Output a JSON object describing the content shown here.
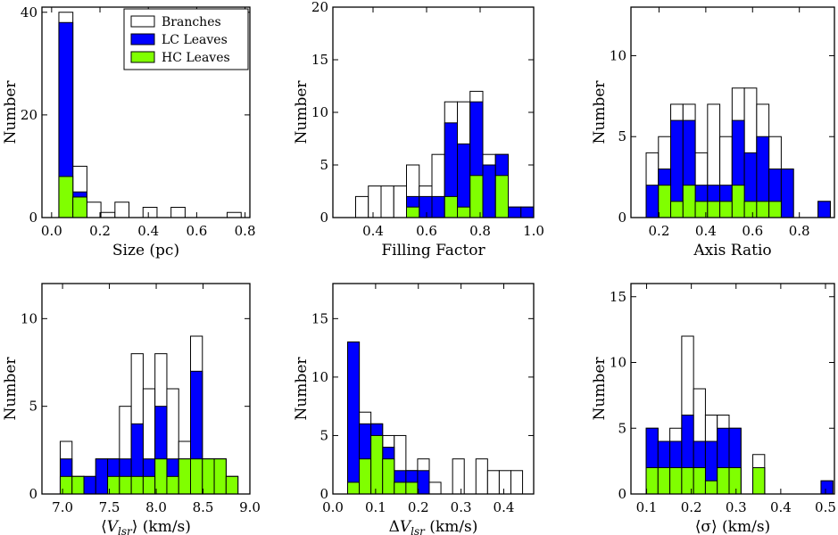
{
  "colors": {
    "branches": "#ffffff",
    "lc_leaves": "#0000ff",
    "hc_leaves": "#80ff00",
    "edge": "#000000"
  },
  "legend": [
    {
      "label": "Branches",
      "color": "#ffffff"
    },
    {
      "label": "LC Leaves",
      "color": "#0000ff"
    },
    {
      "label": "HC Leaves",
      "color": "#80ff00"
    }
  ],
  "chart_data": [
    {
      "type": "bar",
      "id": "size",
      "xlabel": "Size (pc)",
      "ylabel": "Number",
      "xlim": [
        -0.04,
        0.82
      ],
      "ylim": [
        0,
        41
      ],
      "xticks": [
        0.0,
        0.2,
        0.4,
        0.6,
        0.8
      ],
      "xtick_labels": [
        "0.0",
        "0.2",
        "0.4",
        "0.6",
        "0.8"
      ],
      "yticks": [
        0,
        20,
        40
      ],
      "ytick_labels": [
        "0",
        "20",
        "40"
      ],
      "bin_width": 0.058,
      "bin_starts": [
        0.03,
        0.088,
        0.146,
        0.204,
        0.262,
        0.378,
        0.494,
        0.726
      ],
      "branches": [
        40,
        10,
        3,
        1,
        3,
        2,
        2,
        1
      ],
      "lc_leaves": [
        38,
        5,
        0,
        0,
        0,
        0,
        0,
        0
      ],
      "hc_leaves": [
        8,
        4,
        0,
        0,
        0,
        0,
        0,
        0
      ],
      "legend": true
    },
    {
      "type": "bar",
      "id": "filling",
      "xlabel": "Filling Factor",
      "ylabel": "Number",
      "xlim": [
        0.25,
        1.0
      ],
      "ylim": [
        0,
        20
      ],
      "xticks": [
        0.4,
        0.6,
        0.8,
        1.0
      ],
      "xtick_labels": [
        "0.4",
        "0.6",
        "0.8",
        "1.0"
      ],
      "yticks": [
        0,
        5,
        10,
        15,
        20
      ],
      "ytick_labels": [
        "0",
        "5",
        "10",
        "15",
        "20"
      ],
      "bin_width": 0.0475,
      "bin_starts": [
        0.335,
        0.3825,
        0.43,
        0.4775,
        0.525,
        0.5725,
        0.62,
        0.6675,
        0.715,
        0.7625,
        0.81,
        0.8575,
        0.905,
        0.9525
      ],
      "branches": [
        2,
        3,
        3,
        3,
        5,
        3,
        6,
        11,
        11,
        12,
        6,
        6,
        1,
        1
      ],
      "lc_leaves": [
        0,
        0,
        0,
        0,
        2,
        2,
        2,
        9,
        7,
        11,
        5,
        6,
        1,
        1
      ],
      "hc_leaves": [
        0,
        0,
        0,
        0,
        1,
        0,
        0,
        2,
        1,
        4,
        0,
        4,
        0,
        0
      ],
      "legend": false
    },
    {
      "type": "bar",
      "id": "axis",
      "xlabel": "Axis Ratio",
      "ylabel": "Number",
      "xlim": [
        0.08,
        0.95
      ],
      "ylim": [
        0,
        13
      ],
      "xticks": [
        0.2,
        0.4,
        0.6,
        0.8
      ],
      "xtick_labels": [
        "0.2",
        "0.4",
        "0.6",
        "0.8"
      ],
      "yticks": [
        0,
        5,
        10
      ],
      "ytick_labels": [
        "0",
        "5",
        "10"
      ],
      "bin_width": 0.0525,
      "bin_starts": [
        0.145,
        0.1975,
        0.25,
        0.3025,
        0.355,
        0.4075,
        0.46,
        0.5125,
        0.565,
        0.6175,
        0.67,
        0.7225,
        0.8275,
        0.88
      ],
      "branches": [
        4,
        5,
        7,
        7,
        4,
        7,
        5,
        8,
        8,
        7,
        5,
        3,
        0,
        1
      ],
      "lc_leaves": [
        2,
        3,
        6,
        6,
        2,
        2,
        2,
        6,
        4,
        5,
        3,
        3,
        0,
        1
      ],
      "hc_leaves": [
        0,
        2,
        1,
        2,
        1,
        1,
        1,
        2,
        1,
        1,
        1,
        0,
        0,
        0
      ],
      "legend": false
    },
    {
      "type": "bar",
      "id": "vlsr",
      "xlabel": "⟨V_lsr⟩ (km/s)",
      "ylabel": "Number",
      "xlim": [
        6.78,
        9.0
      ],
      "ylim": [
        0,
        12
      ],
      "xticks": [
        7.0,
        7.5,
        8.0,
        8.5,
        9.0
      ],
      "xtick_labels": [
        "7.0",
        "7.5",
        "8.0",
        "8.5",
        "9.0"
      ],
      "yticks": [
        0,
        5,
        10
      ],
      "ytick_labels": [
        "0",
        "5",
        "10"
      ],
      "bin_width": 0.1265,
      "bin_starts": [
        6.975,
        7.1015,
        7.228,
        7.3545,
        7.481,
        7.6075,
        7.734,
        7.8605,
        7.987,
        8.1135,
        8.24,
        8.3665,
        8.493,
        8.6195,
        8.746
      ],
      "branches": [
        3,
        1,
        1,
        2,
        2,
        5,
        8,
        6,
        8,
        6,
        3,
        9,
        2,
        2,
        1
      ],
      "lc_leaves": [
        2,
        1,
        1,
        2,
        2,
        2,
        4,
        2,
        5,
        2,
        2,
        7,
        2,
        2,
        1
      ],
      "hc_leaves": [
        1,
        1,
        0,
        0,
        1,
        1,
        1,
        1,
        2,
        1,
        2,
        2,
        2,
        2,
        1
      ],
      "legend": false
    },
    {
      "type": "bar",
      "id": "dvlsr",
      "xlabel": "ΔV_lsr (km/s)",
      "ylabel": "Number",
      "xlim": [
        0.0,
        0.47
      ],
      "ylim": [
        0,
        18
      ],
      "xticks": [
        0.0,
        0.1,
        0.2,
        0.3,
        0.4
      ],
      "xtick_labels": [
        "0.0",
        "0.1",
        "0.2",
        "0.3",
        "0.4"
      ],
      "yticks": [
        0,
        5,
        10,
        15
      ],
      "ytick_labels": [
        "0",
        "5",
        "10",
        "15"
      ],
      "bin_width": 0.0273,
      "bin_starts": [
        0.0345,
        0.0618,
        0.0891,
        0.1164,
        0.1437,
        0.171,
        0.1983,
        0.2256,
        0.2529,
        0.2802,
        0.3348,
        0.3621,
        0.3894,
        0.4167
      ],
      "branches": [
        13,
        7,
        6,
        5,
        5,
        2,
        3,
        1,
        0,
        3,
        3,
        2,
        2,
        2
      ],
      "lc_leaves": [
        13,
        6,
        6,
        4,
        2,
        2,
        2,
        0,
        0,
        0,
        0,
        0,
        0,
        0
      ],
      "hc_leaves": [
        1,
        3,
        5,
        3,
        1,
        1,
        0,
        0,
        0,
        0,
        0,
        0,
        0,
        0
      ],
      "legend": false
    },
    {
      "type": "bar",
      "id": "sigma",
      "xlabel": "⟨σ⟩ (km/s)",
      "ylabel": "Number",
      "xlim": [
        0.065,
        0.52
      ],
      "ylim": [
        0,
        16
      ],
      "xticks": [
        0.1,
        0.2,
        0.3,
        0.4,
        0.5
      ],
      "xtick_labels": [
        "0.1",
        "0.2",
        "0.3",
        "0.4",
        "0.5"
      ],
      "yticks": [
        0,
        5,
        10,
        15
      ],
      "ytick_labels": [
        "0",
        "5",
        "10",
        "15"
      ],
      "bin_width": 0.0265,
      "bin_starts": [
        0.099,
        0.1255,
        0.152,
        0.1785,
        0.205,
        0.2315,
        0.258,
        0.2845,
        0.3375,
        0.49
      ],
      "branches": [
        5,
        4,
        5,
        12,
        8,
        6,
        6,
        5,
        3,
        1
      ],
      "lc_leaves": [
        5,
        4,
        4,
        6,
        4,
        4,
        5,
        5,
        2,
        1
      ],
      "hc_leaves": [
        2,
        2,
        2,
        2,
        2,
        1,
        2,
        2,
        2,
        0
      ],
      "legend": false
    }
  ]
}
